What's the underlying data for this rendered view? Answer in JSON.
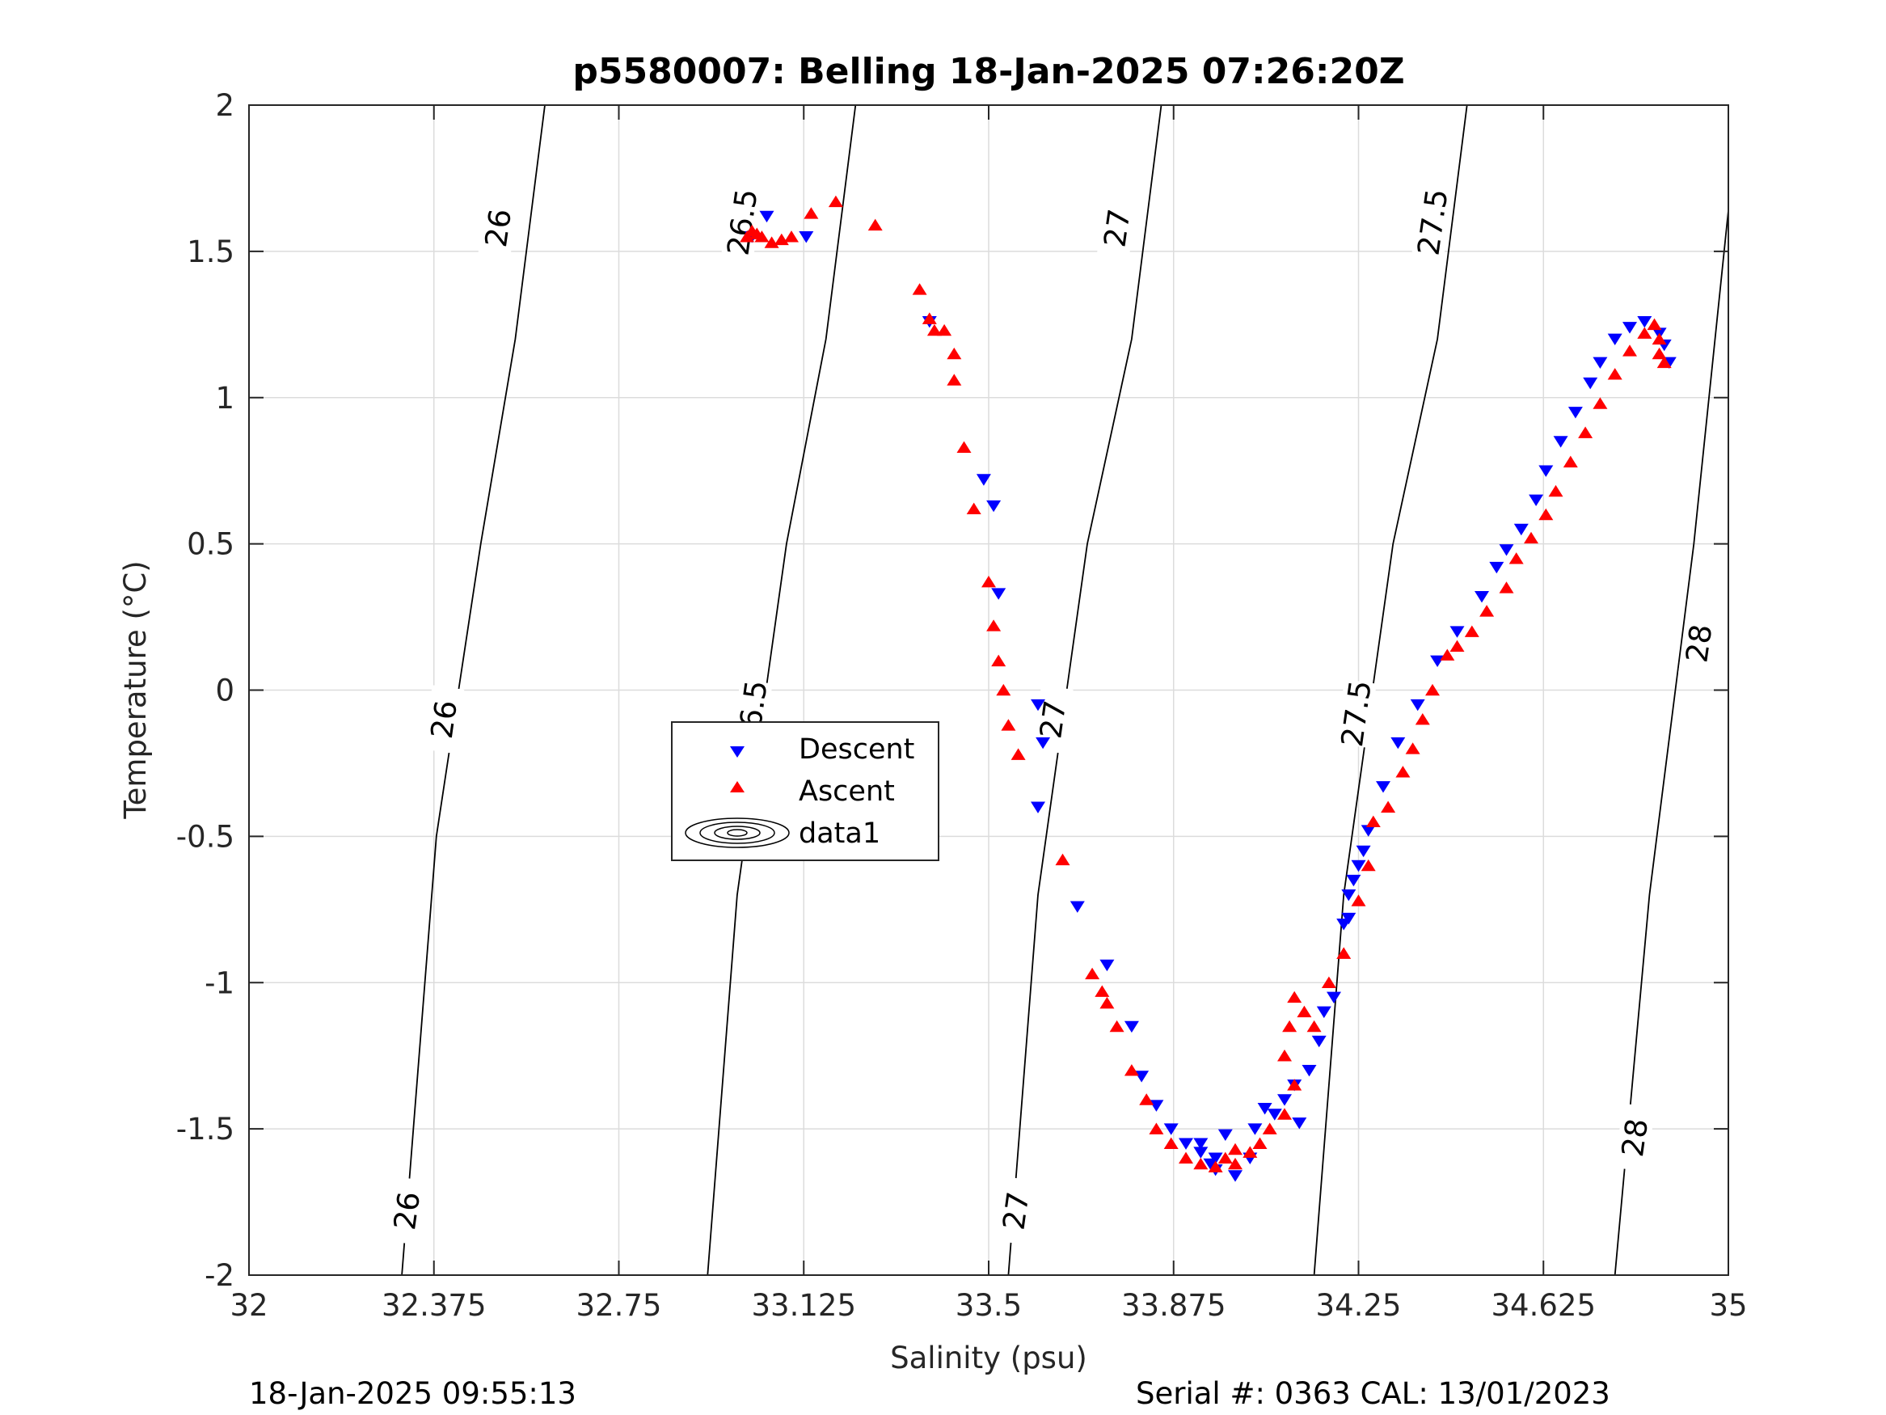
{
  "chart_data": {
    "type": "scatter",
    "title": "p5580007: Belling 18-Jan-2025 07:26:20Z",
    "xlabel": "Salinity (psu)",
    "ylabel": "Temperature (°C)",
    "xlim": [
      32,
      35
    ],
    "ylim": [
      -2,
      2
    ],
    "xticks": [
      "32",
      "32.375",
      "32.75",
      "33.125",
      "33.5",
      "33.875",
      "34.25",
      "34.625",
      "35"
    ],
    "yticks": [
      "-2",
      "-1.5",
      "-1",
      "-0.5",
      "0",
      "0.5",
      "1",
      "1.5",
      "2"
    ],
    "grid": true,
    "legend_position": "center-left",
    "legend": [
      "Descent",
      "Ascent",
      "data1"
    ],
    "colors": {
      "descent": "#0000ff",
      "ascent": "#ff0000",
      "contour": "#000000",
      "grid": "#dcdcdc"
    },
    "contours": [
      {
        "level": "26",
        "points": [
          [
            32.31,
            -2
          ],
          [
            32.38,
            -0.5
          ],
          [
            32.47,
            0.5
          ],
          [
            32.54,
            1.2
          ],
          [
            32.6,
            2
          ]
        ],
        "labels": [
          {
            "text": "26",
            "x": 32.505,
            "y": 1.58
          },
          {
            "text": "26",
            "x": 32.395,
            "y": -0.1
          },
          {
            "text": "26",
            "x": 32.32,
            "y": -1.78
          }
        ]
      },
      {
        "level": "26.5",
        "points": [
          [
            32.93,
            -2
          ],
          [
            32.99,
            -0.7
          ],
          [
            33.09,
            0.5
          ],
          [
            33.17,
            1.2
          ],
          [
            33.23,
            2
          ]
        ],
        "labels": [
          {
            "text": "26.5",
            "x": 33.0,
            "y": 1.6
          },
          {
            "text": "26.5",
            "x": 33.02,
            "y": -0.08
          }
        ]
      },
      {
        "level": "27",
        "points": [
          [
            33.54,
            -2
          ],
          [
            33.6,
            -0.7
          ],
          [
            33.7,
            0.5
          ],
          [
            33.79,
            1.2
          ],
          [
            33.85,
            2
          ]
        ],
        "labels": [
          {
            "text": "27",
            "x": 33.76,
            "y": 1.58
          },
          {
            "text": "27",
            "x": 33.63,
            "y": -0.1
          },
          {
            "text": "27",
            "x": 33.555,
            "y": -1.78
          }
        ]
      },
      {
        "level": "27.5",
        "points": [
          [
            34.16,
            -2
          ],
          [
            34.22,
            -0.7
          ],
          [
            34.32,
            0.5
          ],
          [
            34.41,
            1.2
          ],
          [
            34.47,
            2
          ]
        ],
        "labels": [
          {
            "text": "27.5",
            "x": 34.4,
            "y": 1.6
          },
          {
            "text": "27.5",
            "x": 34.245,
            "y": -0.08
          }
        ]
      },
      {
        "level": "28",
        "points": [
          [
            34.77,
            -2
          ],
          [
            34.84,
            -0.7
          ],
          [
            34.93,
            0.5
          ],
          [
            35.0,
            1.64
          ]
        ],
        "labels": [
          {
            "text": "28",
            "x": 34.94,
            "y": 0.16
          },
          {
            "text": "28",
            "x": 34.81,
            "y": -1.53
          }
        ]
      }
    ],
    "series": [
      {
        "name": "Descent",
        "marker": "triangle-down",
        "points": [
          [
            33.05,
            1.62
          ],
          [
            33.02,
            1.55
          ],
          [
            33.13,
            1.55
          ],
          [
            33.38,
            1.26
          ],
          [
            33.49,
            0.72
          ],
          [
            33.51,
            0.63
          ],
          [
            33.52,
            0.33
          ],
          [
            33.6,
            -0.05
          ],
          [
            33.61,
            -0.18
          ],
          [
            33.6,
            -0.4
          ],
          [
            33.68,
            -0.74
          ],
          [
            33.74,
            -0.94
          ],
          [
            33.79,
            -1.15
          ],
          [
            33.81,
            -1.32
          ],
          [
            33.84,
            -1.42
          ],
          [
            33.87,
            -1.5
          ],
          [
            33.9,
            -1.55
          ],
          [
            33.93,
            -1.58
          ],
          [
            33.96,
            -1.6
          ],
          [
            33.93,
            -1.55
          ],
          [
            33.95,
            -1.62
          ],
          [
            33.96,
            -1.64
          ],
          [
            34.0,
            -1.66
          ],
          [
            34.03,
            -1.6
          ],
          [
            33.98,
            -1.52
          ],
          [
            34.04,
            -1.5
          ],
          [
            34.06,
            -1.43
          ],
          [
            34.08,
            -1.45
          ],
          [
            34.1,
            -1.4
          ],
          [
            34.13,
            -1.48
          ],
          [
            34.15,
            -1.3
          ],
          [
            34.12,
            -1.35
          ],
          [
            34.17,
            -1.2
          ],
          [
            34.18,
            -1.1
          ],
          [
            34.2,
            -1.05
          ],
          [
            34.22,
            -0.8
          ],
          [
            34.23,
            -0.78
          ],
          [
            34.23,
            -0.7
          ],
          [
            34.24,
            -0.65
          ],
          [
            34.25,
            -0.6
          ],
          [
            34.26,
            -0.55
          ],
          [
            34.27,
            -0.48
          ],
          [
            34.3,
            -0.33
          ],
          [
            34.33,
            -0.18
          ],
          [
            34.37,
            -0.05
          ],
          [
            34.41,
            0.1
          ],
          [
            34.45,
            0.2
          ],
          [
            34.5,
            0.32
          ],
          [
            34.53,
            0.42
          ],
          [
            34.55,
            0.48
          ],
          [
            34.58,
            0.55
          ],
          [
            34.61,
            0.65
          ],
          [
            34.63,
            0.75
          ],
          [
            34.66,
            0.85
          ],
          [
            34.69,
            0.95
          ],
          [
            34.72,
            1.05
          ],
          [
            34.74,
            1.12
          ],
          [
            34.77,
            1.2
          ],
          [
            34.8,
            1.24
          ],
          [
            34.83,
            1.26
          ],
          [
            34.86,
            1.22
          ],
          [
            34.87,
            1.18
          ],
          [
            34.88,
            1.12
          ]
        ]
      },
      {
        "name": "Ascent",
        "marker": "triangle-up",
        "points": [
          [
            33.01,
            1.55
          ],
          [
            33.02,
            1.57
          ],
          [
            33.03,
            1.56
          ],
          [
            33.04,
            1.55
          ],
          [
            33.06,
            1.53
          ],
          [
            33.08,
            1.54
          ],
          [
            33.1,
            1.55
          ],
          [
            33.14,
            1.63
          ],
          [
            33.19,
            1.67
          ],
          [
            33.27,
            1.59
          ],
          [
            33.36,
            1.37
          ],
          [
            33.38,
            1.27
          ],
          [
            33.39,
            1.23
          ],
          [
            33.41,
            1.23
          ],
          [
            33.43,
            1.15
          ],
          [
            33.43,
            1.06
          ],
          [
            33.45,
            0.83
          ],
          [
            33.47,
            0.62
          ],
          [
            33.5,
            0.37
          ],
          [
            33.51,
            0.22
          ],
          [
            33.52,
            0.1
          ],
          [
            33.53,
            0.0
          ],
          [
            33.54,
            -0.12
          ],
          [
            33.56,
            -0.22
          ],
          [
            33.65,
            -0.58
          ],
          [
            33.71,
            -0.97
          ],
          [
            33.73,
            -1.03
          ],
          [
            33.74,
            -1.07
          ],
          [
            33.76,
            -1.15
          ],
          [
            33.79,
            -1.3
          ],
          [
            33.82,
            -1.4
          ],
          [
            33.84,
            -1.5
          ],
          [
            33.87,
            -1.55
          ],
          [
            33.9,
            -1.6
          ],
          [
            33.93,
            -1.62
          ],
          [
            33.96,
            -1.63
          ],
          [
            33.98,
            -1.6
          ],
          [
            34.0,
            -1.62
          ],
          [
            34.0,
            -1.57
          ],
          [
            34.03,
            -1.58
          ],
          [
            34.05,
            -1.55
          ],
          [
            34.07,
            -1.5
          ],
          [
            34.1,
            -1.45
          ],
          [
            34.12,
            -1.35
          ],
          [
            34.1,
            -1.25
          ],
          [
            34.11,
            -1.15
          ],
          [
            34.12,
            -1.05
          ],
          [
            34.14,
            -1.1
          ],
          [
            34.16,
            -1.15
          ],
          [
            34.19,
            -1.0
          ],
          [
            34.22,
            -0.9
          ],
          [
            34.25,
            -0.72
          ],
          [
            34.27,
            -0.6
          ],
          [
            34.28,
            -0.45
          ],
          [
            34.31,
            -0.4
          ],
          [
            34.34,
            -0.28
          ],
          [
            34.36,
            -0.2
          ],
          [
            34.38,
            -0.1
          ],
          [
            34.4,
            0.0
          ],
          [
            34.43,
            0.12
          ],
          [
            34.45,
            0.15
          ],
          [
            34.48,
            0.2
          ],
          [
            34.51,
            0.27
          ],
          [
            34.55,
            0.35
          ],
          [
            34.57,
            0.45
          ],
          [
            34.6,
            0.52
          ],
          [
            34.63,
            0.6
          ],
          [
            34.65,
            0.68
          ],
          [
            34.68,
            0.78
          ],
          [
            34.71,
            0.88
          ],
          [
            34.74,
            0.98
          ],
          [
            34.77,
            1.08
          ],
          [
            34.8,
            1.16
          ],
          [
            34.83,
            1.22
          ],
          [
            34.85,
            1.25
          ],
          [
            34.86,
            1.2
          ],
          [
            34.86,
            1.15
          ],
          [
            34.87,
            1.12
          ]
        ]
      }
    ]
  },
  "footer": {
    "left": "18-Jan-2025 09:55:13",
    "right": "Serial #: 0363  CAL: 13/01/2023"
  }
}
